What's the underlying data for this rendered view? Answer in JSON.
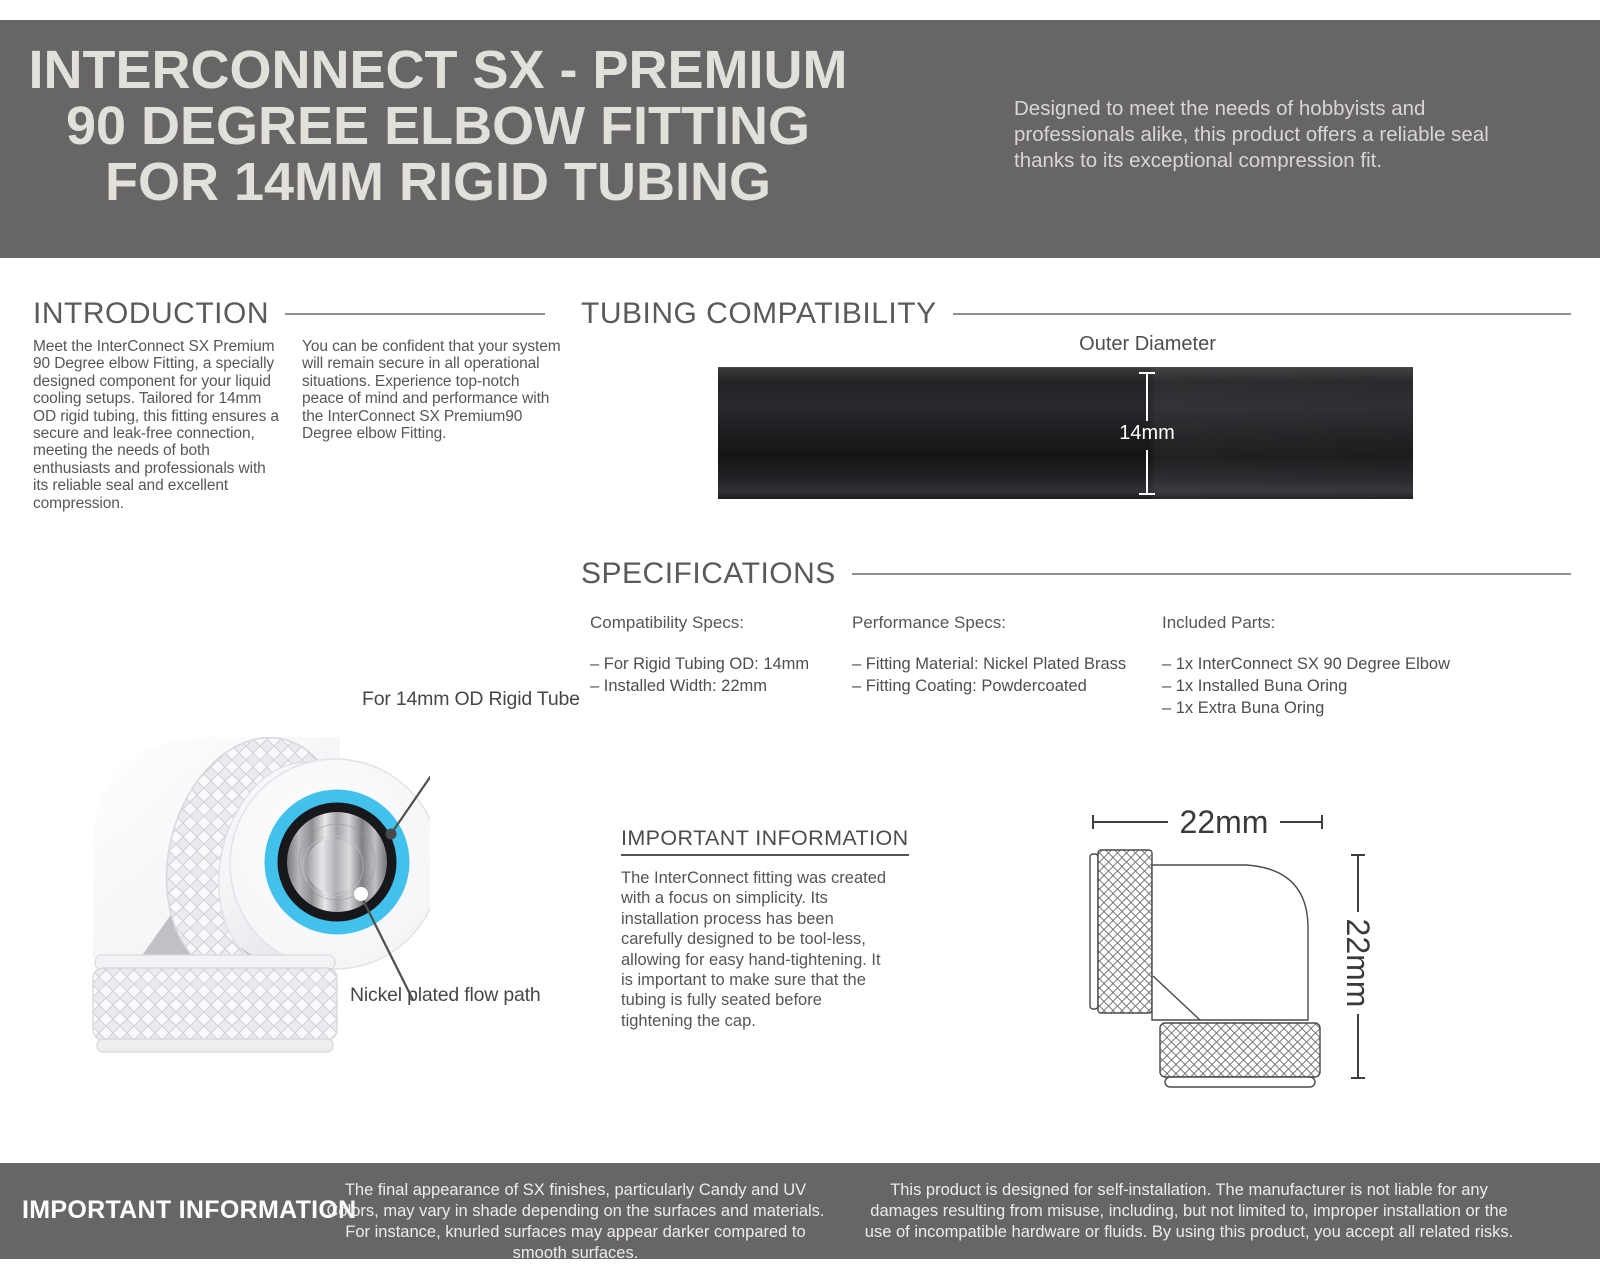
{
  "colors": {
    "band_bg": "#686566",
    "accent_blue": "#41c1ec",
    "tube_dark": "#1c1c1f"
  },
  "header": {
    "title_lines": [
      "INTERCONNECT SX - PREMIUM",
      "90 DEGREE ELBOW FITTING",
      "FOR 14MM RIGID TUBING"
    ],
    "description": "Designed to meet the needs of hobbyists and professionals alike, this product offers a reliable seal thanks to its exceptional compression fit."
  },
  "introduction": {
    "title": "INTRODUCTION",
    "col1": "Meet the InterConnect SX Premium 90 Degree elbow Fitting, a specially designed component for your liquid cooling setups. Tailored for 14mm OD rigid tubing, this fitting ensures a secure and leak-free connection, meeting the needs of both enthusiasts and professionals with its reliable seal and excellent compression.",
    "col2": "You can be confident that your system will remain secure in all operational situations. Experience top-notch peace of mind and performance with the InterConnect SX Premium90 Degree elbow Fitting."
  },
  "tubing": {
    "title": "TUBING COMPATIBILITY",
    "diagram_label": "Outer Diameter",
    "dimension_label": "14mm"
  },
  "specifications": {
    "title": "SPECIFICATIONS",
    "columns": [
      {
        "heading": "Compatibility Specs:",
        "items": [
          "– For Rigid Tubing OD: 14mm",
          "– Installed Width: 22mm"
        ]
      },
      {
        "heading": "Performance Specs:",
        "items": [
          "– Fitting Material: Nickel Plated Brass",
          "– Fitting Coating: Powdercoated"
        ]
      },
      {
        "heading": "Included Parts:",
        "items": [
          "– 1x InterConnect SX 90 Degree Elbow",
          "– 1x Installed Buna Oring",
          "– 1x Extra Buna Oring"
        ]
      }
    ]
  },
  "product": {
    "callout_top": "For 14mm OD Rigid Tube",
    "callout_bottom": "Nickel plated flow path"
  },
  "important": {
    "title": "IMPORTANT INFORMATION",
    "body": "The InterConnect fitting was created with a focus on simplicity. Its installation process has been carefully designed to be tool-less, allowing for easy hand-tightening. It is important to make sure that the tubing is fully seated before tightening the cap."
  },
  "drawing": {
    "width_label": "22mm",
    "height_label": "22mm"
  },
  "footer": {
    "title": "IMPORTANT INFORMATION",
    "note1": "The final appearance of SX finishes, particularly Candy and UV Colors, may vary in shade depending on the surfaces and materials. For instance, knurled surfaces may appear darker compared to smooth surfaces.",
    "note2": "This product is designed for self-installation. The manufacturer is not liable for any damages resulting from misuse, including, but not limited to, improper installation or the use of incompatible hardware or fluids. By using this product, you accept all related risks."
  }
}
